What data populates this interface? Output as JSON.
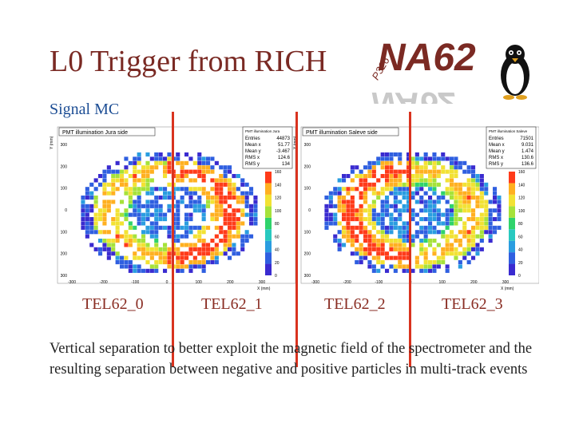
{
  "slide": {
    "title": "L0 Trigger from RICH",
    "subtitle": "Signal MC",
    "description": "Vertical separation to better exploit the magnetic field of the spectrometer and the resulting separation between negative and positive particles in multi-track events",
    "tel_labels": [
      "TEL62_0",
      "TEL62_1",
      "TEL62_2",
      "TEL62_3"
    ],
    "line_color": "#d9331f"
  },
  "logo": {
    "text": "NA62",
    "small_text": "P326",
    "icon": "penguin-icon"
  },
  "chart_data": [
    {
      "type": "heatmap",
      "title": "PMT illumination Jura side",
      "xlabel": "X (mm)",
      "ylabel": "Y (mm)",
      "x_ticks": [
        "-300",
        "-200",
        "-100",
        "0",
        "100",
        "200",
        "300"
      ],
      "y_ticks": [
        "300",
        "200",
        "100",
        "0",
        "100",
        "200",
        "300"
      ],
      "colorbar_ticks": [
        "160",
        "140",
        "120",
        "100",
        "80",
        "60",
        "40",
        "20",
        "0"
      ],
      "stats": {
        "header": "PMT illumination Jura",
        "rows": [
          {
            "label": "Entries",
            "value": "44873"
          },
          {
            "label": "Mean x",
            "value": "51.77"
          },
          {
            "label": "Mean y",
            "value": "-3.467"
          },
          {
            "label": "RMS x",
            "value": "124.6"
          },
          {
            "label": "RMS y",
            "value": "134"
          }
        ]
      }
    },
    {
      "type": "heatmap",
      "title": "PMT illumination Saleve side",
      "xlabel": "X (mm)",
      "ylabel": "Y (mm)",
      "x_ticks": [
        "-300",
        "-200",
        "-100",
        "0",
        "100",
        "200",
        "300"
      ],
      "y_ticks": [
        "300",
        "200",
        "100",
        "0",
        "100",
        "200",
        "300"
      ],
      "colorbar_ticks": [
        "160",
        "140",
        "120",
        "100",
        "80",
        "60",
        "40",
        "20",
        "0"
      ],
      "stats": {
        "header": "PMT illumination Saleve",
        "rows": [
          {
            "label": "Entries",
            "value": "71501"
          },
          {
            "label": "Mean x",
            "value": "9.031"
          },
          {
            "label": "Mean y",
            "value": "1.474"
          },
          {
            "label": "RMS x",
            "value": "130.6"
          },
          {
            "label": "RMS y",
            "value": "136.6"
          }
        ]
      }
    }
  ]
}
